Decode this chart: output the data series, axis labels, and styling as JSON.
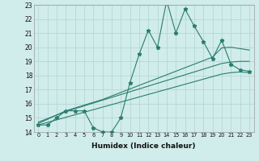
{
  "xlabel": "Humidex (Indice chaleur)",
  "x_values": [
    0,
    1,
    2,
    3,
    4,
    5,
    6,
    7,
    8,
    9,
    10,
    11,
    12,
    13,
    14,
    15,
    16,
    17,
    18,
    19,
    20,
    21,
    22,
    23
  ],
  "main_line": [
    14.5,
    14.5,
    15.0,
    15.5,
    15.5,
    15.5,
    14.3,
    14.0,
    14.0,
    15.0,
    17.5,
    19.5,
    21.2,
    20.0,
    23.3,
    21.0,
    22.7,
    21.5,
    20.4,
    19.2,
    20.5,
    18.8,
    18.4,
    18.3
  ],
  "reg_line1": [
    14.6,
    14.9,
    15.2,
    15.5,
    15.7,
    15.9,
    16.1,
    16.3,
    16.55,
    16.8,
    17.05,
    17.3,
    17.55,
    17.8,
    18.05,
    18.3,
    18.55,
    18.8,
    19.05,
    19.3,
    19.95,
    20.0,
    19.9,
    19.8
  ],
  "reg_line2": [
    14.7,
    14.95,
    15.2,
    15.45,
    15.65,
    15.85,
    16.05,
    16.25,
    16.45,
    16.65,
    16.85,
    17.05,
    17.25,
    17.45,
    17.65,
    17.85,
    18.05,
    18.25,
    18.45,
    18.65,
    18.85,
    18.95,
    19.0,
    19.0
  ],
  "reg_line3": [
    14.5,
    14.68,
    14.86,
    15.04,
    15.22,
    15.4,
    15.58,
    15.76,
    15.94,
    16.12,
    16.3,
    16.48,
    16.66,
    16.84,
    17.02,
    17.2,
    17.38,
    17.56,
    17.74,
    17.92,
    18.1,
    18.2,
    18.25,
    18.2
  ],
  "color": "#2a7d6f",
  "bg_color": "#d0eceb",
  "grid_color": "#b0d5d2",
  "ylim_min": 14,
  "ylim_max": 23,
  "xlim_min": -0.5,
  "xlim_max": 23.5
}
